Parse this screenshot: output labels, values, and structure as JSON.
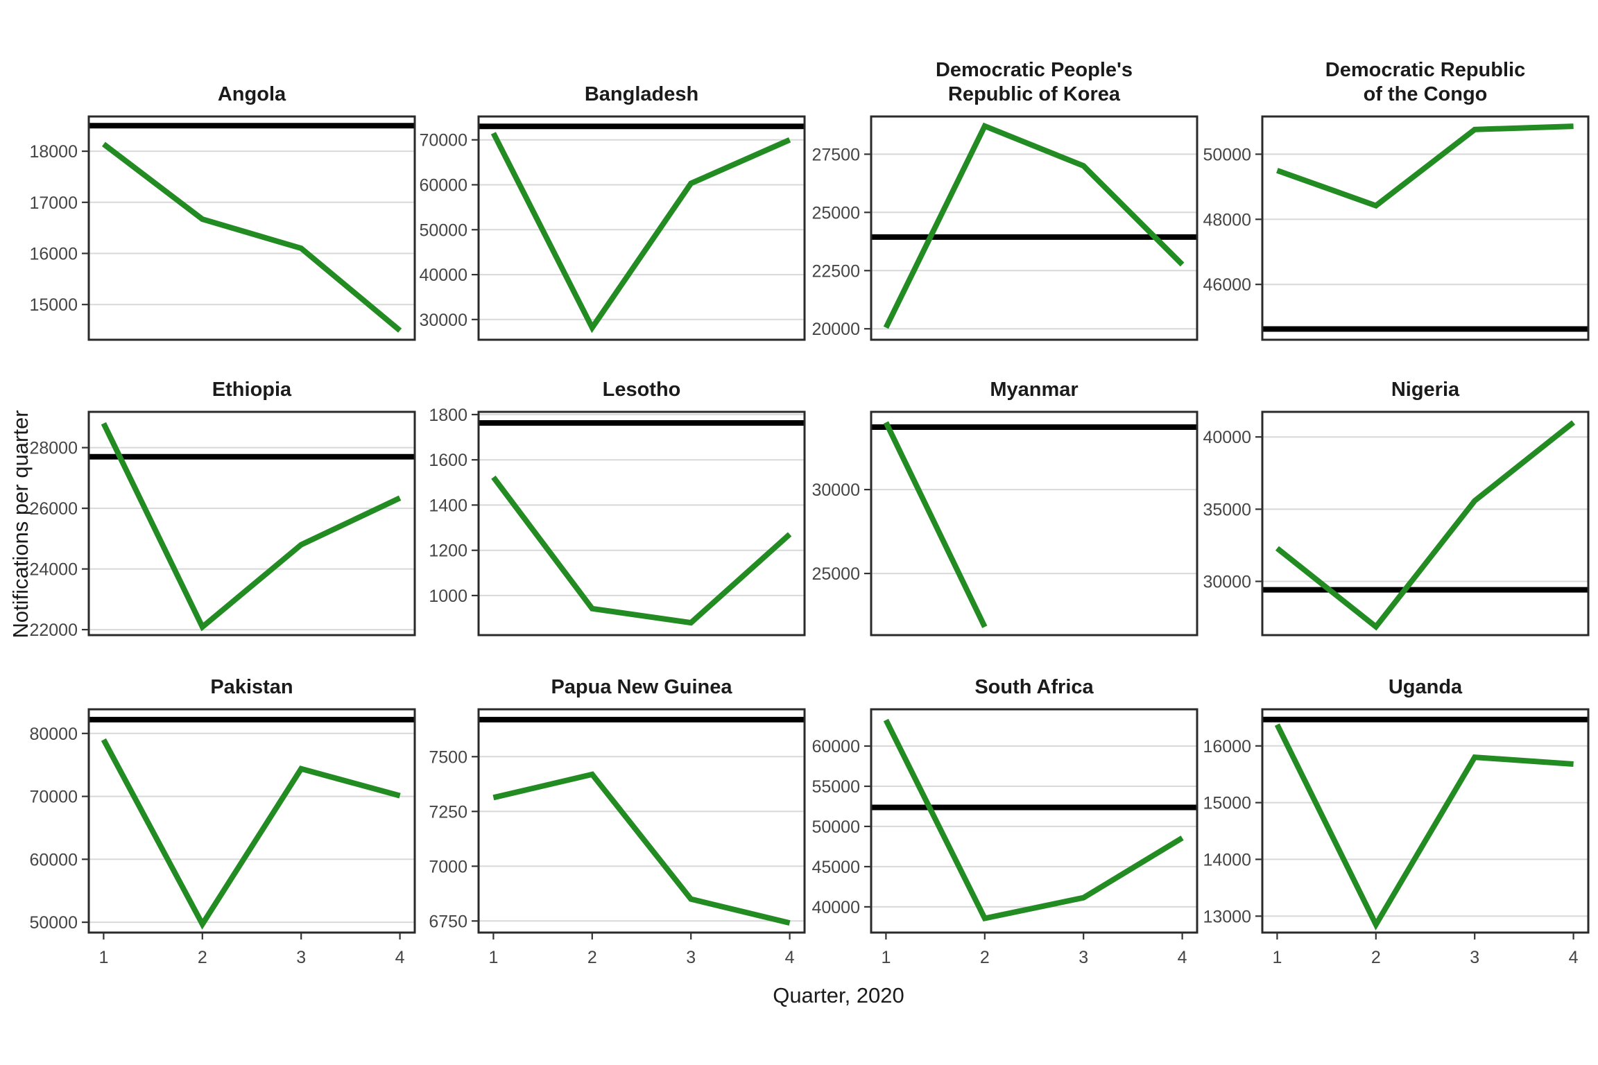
{
  "chart_data": {
    "type": "line",
    "layout": "facet-grid-4cols-3rows",
    "x_label": "Quarter, 2020",
    "y_label": "Notifications per quarter",
    "x": [
      1,
      2,
      3,
      4
    ],
    "x_tick_labels": [
      "1",
      "2",
      "3",
      "4"
    ],
    "grid": "horizontal-major-only",
    "legend": "none",
    "line_color": "#228B22",
    "reference_line_color": "#000000",
    "gridline_color": "#d8d8d8",
    "panel_border_color": "#2a2a2a",
    "tick_color": "#333333",
    "tick_label_color": "#454545",
    "title_color": "#1b1b1b",
    "series_names": [
      "notifications",
      "reference_level"
    ],
    "facets": [
      {
        "title": "Angola",
        "title_lines": [
          "Angola"
        ],
        "values": [
          18140,
          16670,
          16100,
          14490
        ],
        "reference_line": 18500,
        "y_ticks": [
          18000,
          17000,
          16000,
          15000
        ],
        "ylim": [
          14310,
          18680
        ]
      },
      {
        "title": "Bangladesh",
        "title_lines": [
          "Bangladesh"
        ],
        "values": [
          71500,
          28200,
          60300,
          70000
        ],
        "reference_line": 73000,
        "y_ticks": [
          70000,
          60000,
          50000,
          40000,
          30000
        ],
        "ylim": [
          25500,
          75200
        ]
      },
      {
        "title": "Democratic People's Republic of Korea",
        "title_lines": [
          "Democratic People's",
          "Republic of Korea"
        ],
        "values": [
          20050,
          28710,
          27000,
          22760
        ],
        "reference_line": 23940,
        "y_ticks": [
          27500,
          25000,
          22500,
          20000
        ],
        "ylim": [
          19530,
          29120
        ]
      },
      {
        "title": "Democratic Republic of the Congo",
        "title_lines": [
          "Democratic Republic",
          "of the Congo"
        ],
        "values": [
          49500,
          48420,
          50760,
          50860
        ],
        "reference_line": 44630,
        "y_ticks": [
          50000,
          48000,
          46000
        ],
        "ylim": [
          44300,
          51160
        ]
      },
      {
        "title": "Ethiopia",
        "title_lines": [
          "Ethiopia"
        ],
        "values": [
          28800,
          22090,
          24800,
          26340
        ],
        "reference_line": 27700,
        "y_ticks": [
          28000,
          26000,
          24000,
          22000
        ],
        "ylim": [
          21820,
          29180
        ]
      },
      {
        "title": "Lesotho",
        "title_lines": [
          "Lesotho"
        ],
        "values": [
          1523,
          942,
          880,
          1271
        ],
        "reference_line": 1763,
        "y_ticks": [
          1800,
          1600,
          1400,
          1200,
          1000
        ],
        "ylim": [
          825,
          1812
        ]
      },
      {
        "title": "Myanmar",
        "title_lines": [
          "Myanmar"
        ],
        "values": [
          34000,
          21820,
          null,
          null
        ],
        "reference_line": 33720,
        "y_ticks": [
          30000,
          25000
        ],
        "ylim": [
          21330,
          34630
        ]
      },
      {
        "title": "Nigeria",
        "title_lines": [
          "Nigeria"
        ],
        "values": [
          32290,
          26860,
          35580,
          41010
        ],
        "reference_line": 29420,
        "y_ticks": [
          40000,
          35000,
          30000
        ],
        "ylim": [
          26280,
          41740
        ]
      },
      {
        "title": "Pakistan",
        "title_lines": [
          "Pakistan"
        ],
        "values": [
          79000,
          49700,
          74380,
          70110
        ],
        "reference_line": 82190,
        "y_ticks": [
          80000,
          70000,
          60000,
          50000
        ],
        "ylim": [
          48360,
          83830
        ]
      },
      {
        "title": "Papua New Guinea",
        "title_lines": [
          "Papua New Guinea"
        ],
        "values": [
          7313,
          7419,
          6850,
          6741
        ],
        "reference_line": 7669,
        "y_ticks": [
          7500,
          7250,
          7000,
          6750
        ],
        "ylim": [
          6697,
          7716
        ]
      },
      {
        "title": "South Africa",
        "title_lines": [
          "South Africa"
        ],
        "values": [
          63230,
          38570,
          41140,
          48570
        ],
        "reference_line": 52370,
        "y_ticks": [
          60000,
          55000,
          50000,
          45000,
          40000
        ],
        "ylim": [
          36800,
          64570
        ]
      },
      {
        "title": "Uganda",
        "title_lines": [
          "Uganda"
        ],
        "values": [
          16375,
          12850,
          15800,
          15680
        ],
        "reference_line": 16465,
        "y_ticks": [
          16000,
          15000,
          14000,
          13000
        ],
        "ylim": [
          12710,
          16645
        ]
      }
    ]
  }
}
